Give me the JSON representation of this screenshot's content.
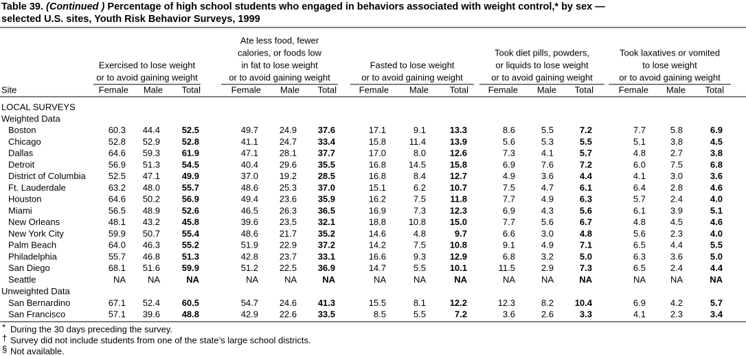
{
  "title": {
    "number": "Table 39.",
    "continued": "(Continued )",
    "line1": "Percentage of high school students who engaged in behaviors associated with weight control,* by sex —",
    "line2": "selected U.S. sites, Youth Risk Behavior Surveys, 1999"
  },
  "table": {
    "site_header": "Site",
    "groups": [
      {
        "lines": [
          "Exercised to lose weight",
          "or to avoid gaining weight"
        ],
        "columns": [
          "Female",
          "Male",
          "Total"
        ]
      },
      {
        "lines": [
          "Ate less food, fewer",
          "calories, or foods low",
          "in fat to lose weight",
          "or to avoid gaining weight"
        ],
        "columns": [
          "Female",
          "Male",
          "Total"
        ]
      },
      {
        "lines": [
          "Fasted to lose weight",
          "or to avoid gaining weight"
        ],
        "columns": [
          "Female",
          "Male",
          "Total"
        ]
      },
      {
        "lines": [
          "Took diet pills, powders,",
          "or liquids to lose weight",
          "or to avoid gaining weight"
        ],
        "columns": [
          "Female",
          "Male",
          "Total"
        ]
      },
      {
        "lines": [
          "Took laxatives or vomited",
          "to lose weight",
          "or to avoid gaining weight"
        ],
        "columns": [
          "Female",
          "Male",
          "Total"
        ]
      }
    ],
    "survey_label": "LOCAL SURVEYS",
    "sections": [
      {
        "label": "Weighted Data",
        "rows": [
          {
            "site": "Boston",
            "values": [
              "60.3",
              "44.4",
              "52.5",
              "49.7",
              "24.9",
              "37.6",
              "17.1",
              "9.1",
              "13.3",
              "8.6",
              "5.5",
              "7.2",
              "7.7",
              "5.8",
              "6.9"
            ]
          },
          {
            "site": "Chicago",
            "values": [
              "52.8",
              "52.9",
              "52.8",
              "41.1",
              "24.7",
              "33.4",
              "15.8",
              "11.4",
              "13.9",
              "5.6",
              "5.3",
              "5.5",
              "5.1",
              "3.8",
              "4.5"
            ]
          },
          {
            "site": "Dallas",
            "values": [
              "64.6",
              "59.3",
              "61.9",
              "47.1",
              "28.1",
              "37.7",
              "17.0",
              "8.0",
              "12.6",
              "7.3",
              "4.1",
              "5.7",
              "4.8",
              "2.7",
              "3.8"
            ]
          },
          {
            "site": "Detroit",
            "values": [
              "56.9",
              "51.3",
              "54.5",
              "40.4",
              "29.6",
              "35.5",
              "16.8",
              "14.5",
              "15.8",
              "6.9",
              "7.6",
              "7.2",
              "6.0",
              "7.5",
              "6.8"
            ]
          },
          {
            "site": "District of Columbia",
            "values": [
              "52.5",
              "47.1",
              "49.9",
              "37.0",
              "19.2",
              "28.5",
              "16.8",
              "8.4",
              "12.7",
              "4.9",
              "3.6",
              "4.4",
              "4.1",
              "3.0",
              "3.6"
            ]
          },
          {
            "site": "Ft. Lauderdale",
            "values": [
              "63.2",
              "48.0",
              "55.7",
              "48.6",
              "25.3",
              "37.0",
              "15.1",
              "6.2",
              "10.7",
              "7.5",
              "4.7",
              "6.1",
              "6.4",
              "2.8",
              "4.6"
            ]
          },
          {
            "site": "Houston",
            "values": [
              "64.6",
              "50.2",
              "56.9",
              "49.4",
              "23.6",
              "35.9",
              "16.2",
              "7.5",
              "11.8",
              "7.7",
              "4.9",
              "6.3",
              "5.7",
              "2.4",
              "4.0"
            ]
          },
          {
            "site": "Miami",
            "values": [
              "56.5",
              "48.9",
              "52.6",
              "46.5",
              "26.3",
              "36.5",
              "16.9",
              "7.3",
              "12.3",
              "6.9",
              "4.3",
              "5.6",
              "6.1",
              "3.9",
              "5.1"
            ]
          },
          {
            "site": "New Orleans",
            "values": [
              "48.1",
              "43.2",
              "45.8",
              "39.6",
              "23.5",
              "32.1",
              "18.8",
              "10.8",
              "15.0",
              "7.7",
              "5.6",
              "6.7",
              "4.8",
              "4.5",
              "4.6"
            ]
          },
          {
            "site": "New York City",
            "values": [
              "59.9",
              "50.7",
              "55.4",
              "48.6",
              "21.7",
              "35.2",
              "14.6",
              "4.8",
              "9.7",
              "6.6",
              "3.0",
              "4.8",
              "5.6",
              "2.3",
              "4.0"
            ]
          },
          {
            "site": "Palm Beach",
            "values": [
              "64.0",
              "46.3",
              "55.2",
              "51.9",
              "22.9",
              "37.2",
              "14.2",
              "7.5",
              "10.8",
              "9.1",
              "4.9",
              "7.1",
              "6.5",
              "4.4",
              "5.5"
            ]
          },
          {
            "site": "Philadelphia",
            "values": [
              "55.7",
              "46.8",
              "51.3",
              "42.8",
              "23.7",
              "33.1",
              "16.6",
              "9.3",
              "12.9",
              "6.8",
              "3.2",
              "5.0",
              "6.3",
              "3.6",
              "5.0"
            ]
          },
          {
            "site": "San Diego",
            "values": [
              "68.1",
              "51.6",
              "59.9",
              "51.2",
              "22.5",
              "36.9",
              "14.7",
              "5.5",
              "10.1",
              "11.5",
              "2.9",
              "7.3",
              "6.5",
              "2.4",
              "4.4"
            ]
          },
          {
            "site": "Seattle",
            "values": [
              "NA",
              "NA",
              "NA",
              "NA",
              "NA",
              "NA",
              "NA",
              "NA",
              "NA",
              "NA",
              "NA",
              "NA",
              "NA",
              "NA",
              "NA"
            ]
          }
        ]
      },
      {
        "label": "Unweighted Data",
        "rows": [
          {
            "site": "San Bernardino",
            "values": [
              "67.1",
              "52.4",
              "60.5",
              "54.7",
              "24.6",
              "41.3",
              "15.5",
              "8.1",
              "12.2",
              "12.3",
              "8.2",
              "10.4",
              "6.9",
              "4.2",
              "5.7"
            ]
          },
          {
            "site": "San Francisco",
            "values": [
              "57.1",
              "39.6",
              "48.8",
              "42.9",
              "22.6",
              "33.5",
              "8.5",
              "5.5",
              "7.2",
              "3.6",
              "2.6",
              "3.3",
              "4.1",
              "2.3",
              "3.4"
            ]
          }
        ]
      }
    ]
  },
  "footnotes": [
    {
      "symbol": "*",
      "text": "During the 30 days preceding the survey."
    },
    {
      "symbol": "†",
      "text": "Survey did not include students from one of the state’s large school districts."
    },
    {
      "symbol": "§",
      "text": "Not available."
    }
  ]
}
